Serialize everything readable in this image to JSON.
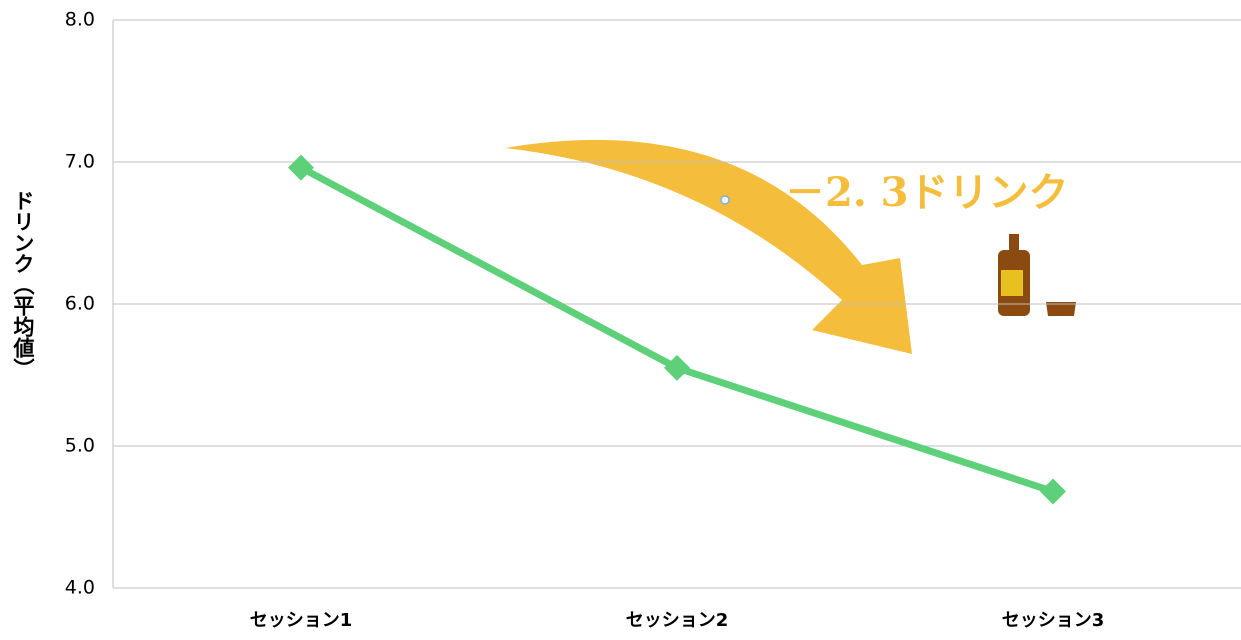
{
  "chart_data": {
    "type": "line",
    "y_label": "ドリンク（平均値）",
    "annotation": "－2. 3ドリンク",
    "categories": [
      "セッション1",
      "セッション2",
      "セッション3"
    ],
    "series": [
      {
        "name": "ドリンク",
        "color": "#5fd07a",
        "values": [
          6.96,
          5.55,
          4.68
        ]
      }
    ],
    "ylim": [
      4,
      8
    ],
    "yticks": [
      {
        "value": 4,
        "label": "4.0"
      },
      {
        "value": 5,
        "label": "5.0"
      },
      {
        "value": 6,
        "label": "6.0"
      },
      {
        "value": 7,
        "label": "7.0"
      },
      {
        "value": 8,
        "label": "8.0"
      }
    ],
    "grid": true
  }
}
